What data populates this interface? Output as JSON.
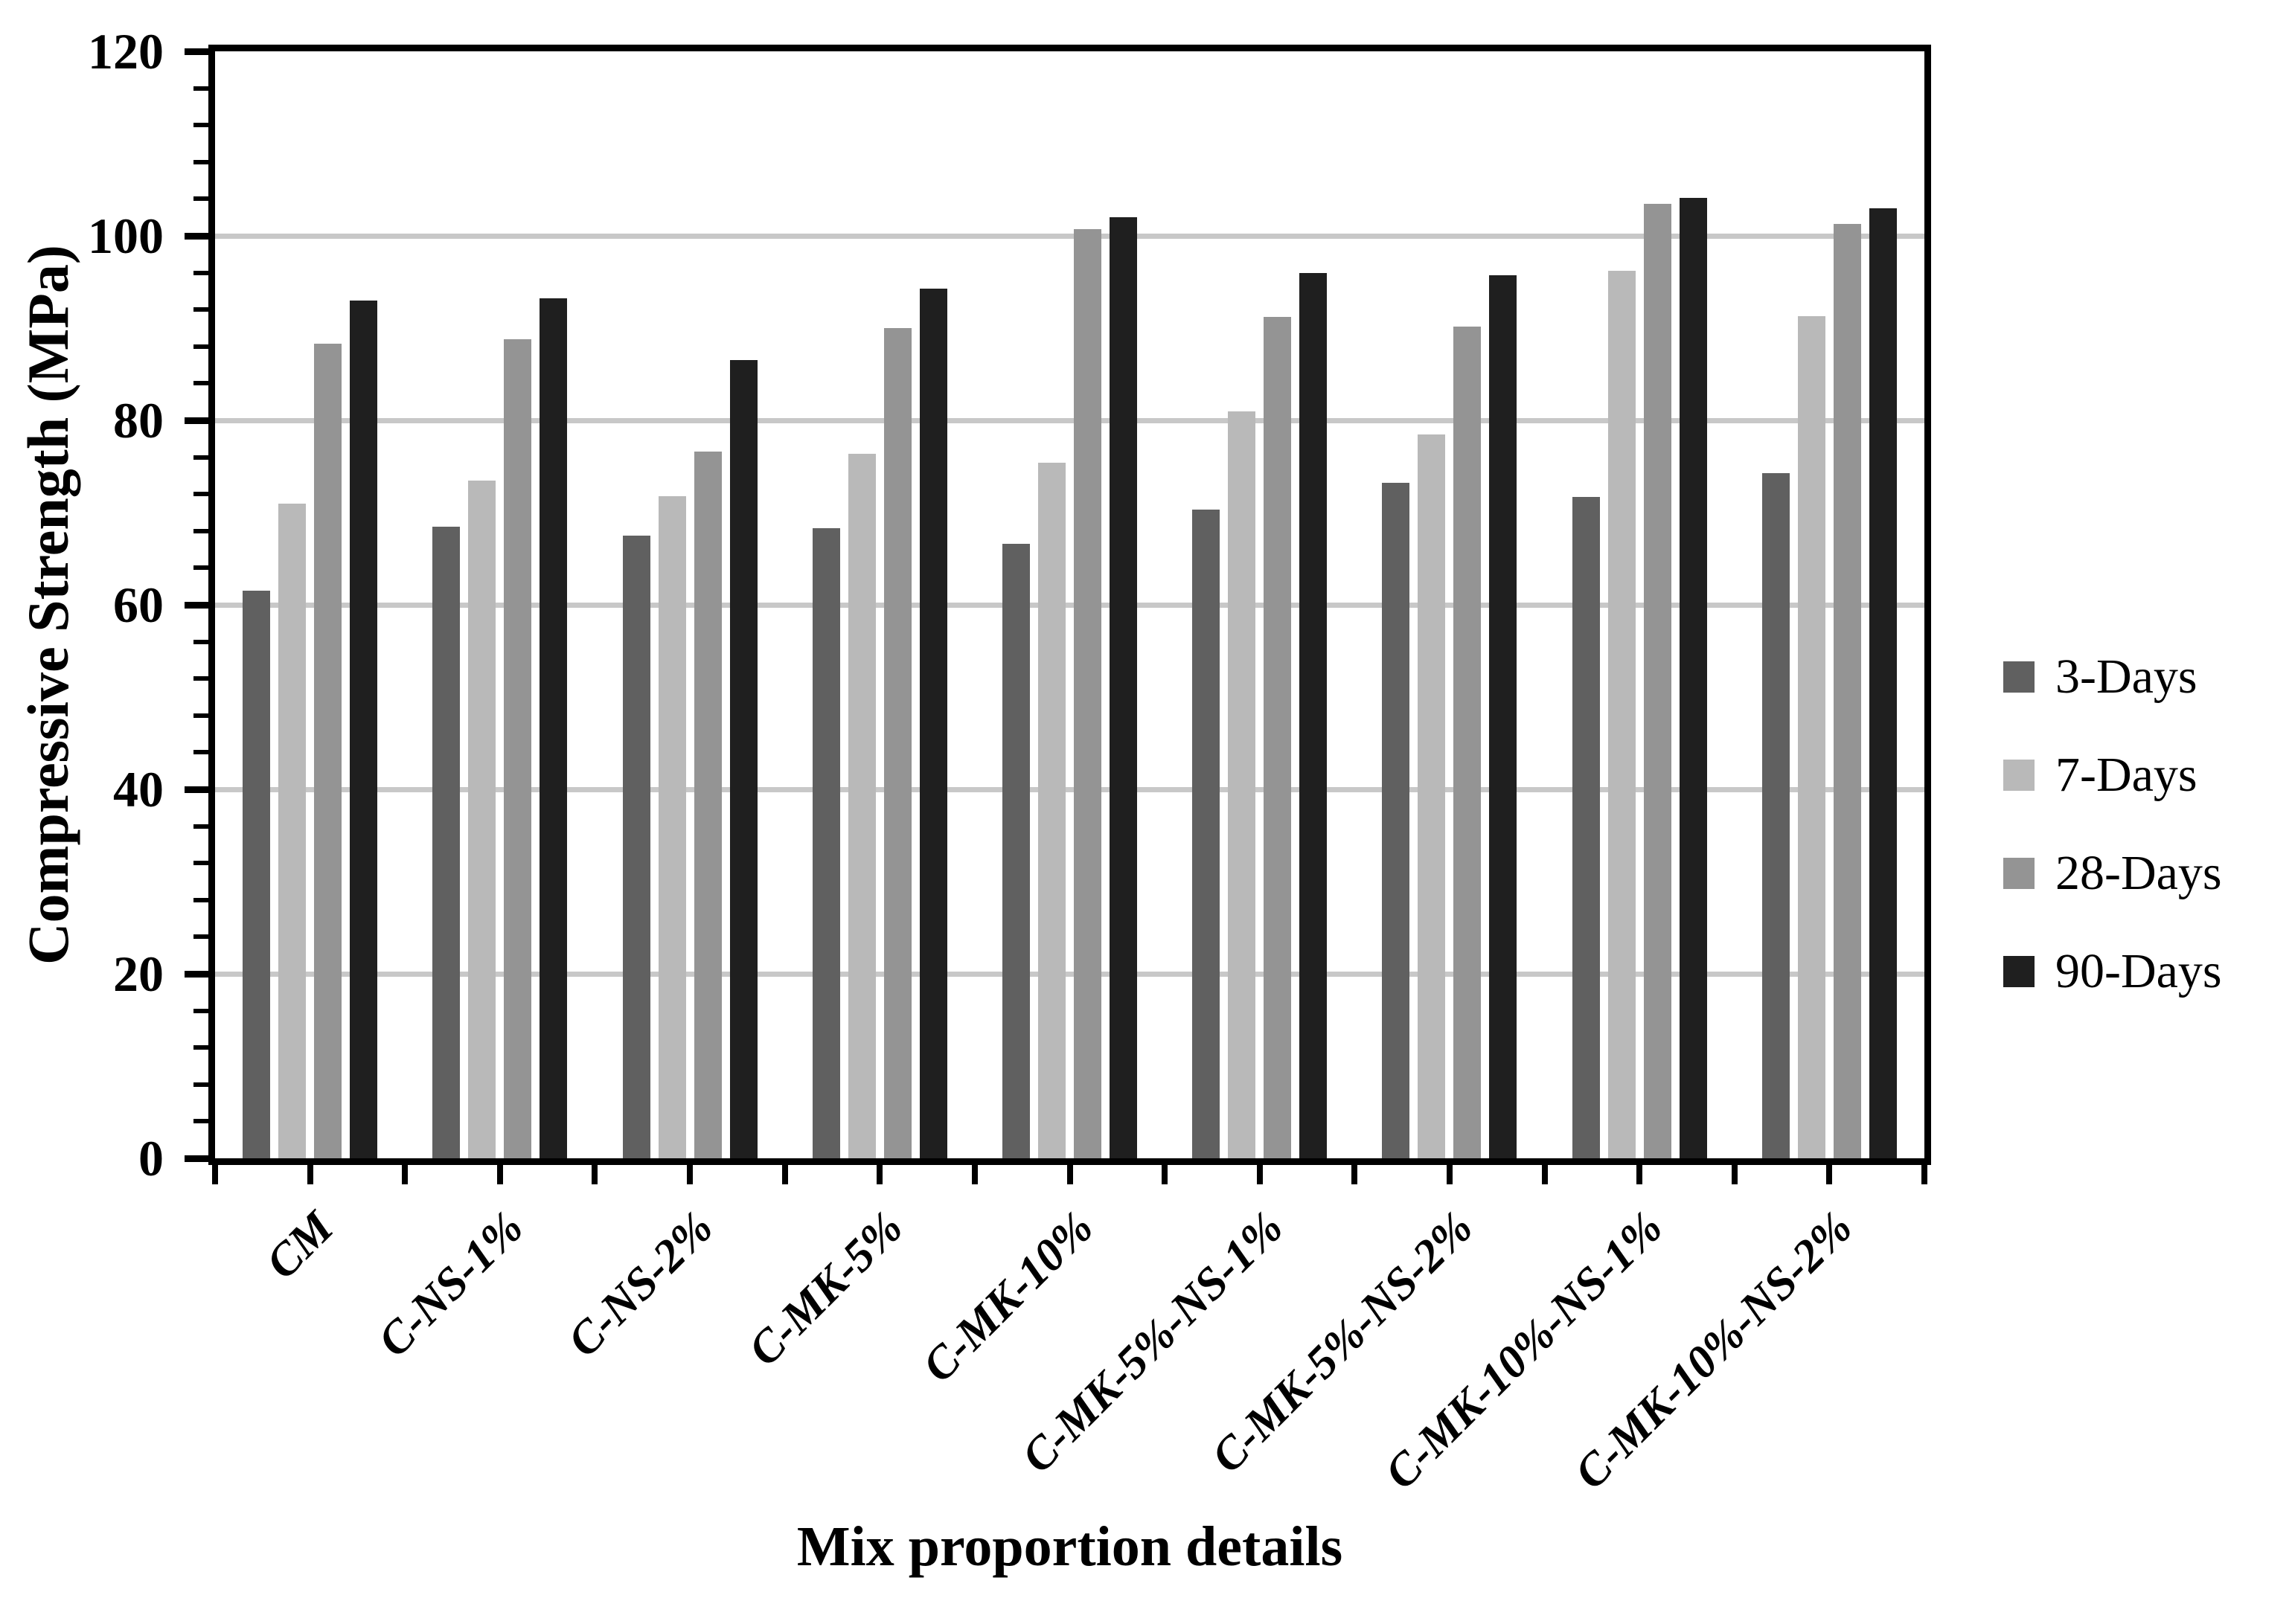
{
  "chart_data": {
    "type": "bar",
    "title": "",
    "xlabel": "Mix proportion details",
    "ylabel": "Compressive Strength (MPa)",
    "categories": [
      "CM",
      "C-NS-1%",
      "C-NS-2%",
      "C-MK-5%",
      "C-MK-10%",
      "C-MK-5%-NS-1%",
      "C-MK-5%-NS-2%",
      "C-MK-10%-NS-1%",
      "C-MK-10%-NS-2%"
    ],
    "series": [
      {
        "name": "3-Days",
        "color": "#606060",
        "values": [
          61.5,
          68.5,
          67.5,
          68.3,
          66.6,
          70.3,
          73.2,
          71.7,
          74.3
        ]
      },
      {
        "name": "7-Days",
        "color": "#b9b9b9",
        "values": [
          71.0,
          73.5,
          71.8,
          76.4,
          75.4,
          81.0,
          78.5,
          96.2,
          91.3
        ]
      },
      {
        "name": "28-Days",
        "color": "#949494",
        "values": [
          88.3,
          88.8,
          76.6,
          90.0,
          100.7,
          91.2,
          90.2,
          103.5,
          101.3
        ]
      },
      {
        "name": "90-Days",
        "color": "#1f1f1f",
        "values": [
          93.0,
          93.2,
          86.5,
          94.3,
          102.0,
          96.0,
          95.7,
          104.1,
          103.0
        ]
      }
    ],
    "ylim": [
      0,
      120
    ],
    "y_major_tick": 20,
    "y_minor_tick": 4,
    "y_ticks": [
      0,
      20,
      40,
      60,
      80,
      100,
      120
    ],
    "grid": true,
    "legend_position": "right"
  },
  "colors": {
    "gridline": "#c8c8c8",
    "axis": "#000000",
    "background": "#ffffff"
  }
}
